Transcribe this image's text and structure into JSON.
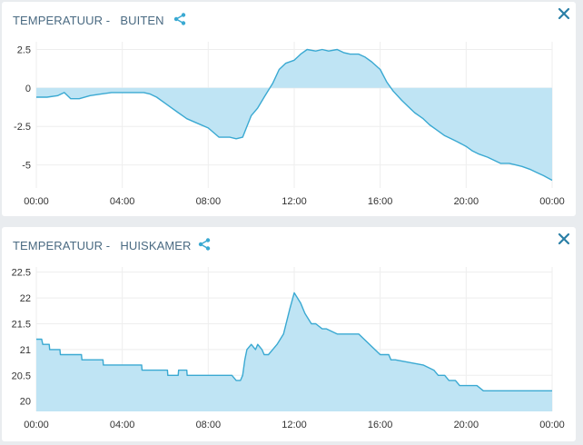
{
  "colors": {
    "accent": "#3aa9d2",
    "fill": "#bfe4f4",
    "title": "#4a6a82",
    "grid": "#eeeeee",
    "close": "#2a7fa6"
  },
  "icons": {
    "share": "share-icon",
    "close": "close-icon"
  },
  "panels": [
    {
      "title": "TEMPERATUUR -   BUITEN"
    },
    {
      "title": "TEMPERATUUR -   HUISKAMER"
    }
  ],
  "chart_data": [
    {
      "type": "area",
      "title": "TEMPERATUUR -   BUITEN",
      "xlabel": "",
      "ylabel": "",
      "ylim": [
        -6.5,
        3.0
      ],
      "baseline": 0,
      "grid": true,
      "xtick_labels": [
        "00:00",
        "04:00",
        "08:00",
        "12:00",
        "16:00",
        "20:00",
        "00:00"
      ],
      "ytick_values": [
        2.5,
        0,
        -2.5,
        -5
      ],
      "ytick_labels": [
        "2.5",
        "0",
        "-2.5",
        "-5"
      ],
      "x_hours": [
        0,
        0.5,
        1,
        1.3,
        1.6,
        2,
        2.5,
        3,
        3.5,
        4,
        4.5,
        5,
        5.3,
        5.6,
        6,
        6.3,
        6.6,
        7,
        7.5,
        8,
        8.5,
        9,
        9.3,
        9.6,
        9.8,
        10,
        10.3,
        10.6,
        11,
        11.3,
        11.6,
        12,
        12.3,
        12.6,
        13,
        13.3,
        13.6,
        14,
        14.3,
        14.6,
        15,
        15.3,
        15.6,
        16,
        16.3,
        16.6,
        17,
        17.3,
        17.6,
        18,
        18.3,
        18.6,
        19,
        19.3,
        19.6,
        20,
        20.3,
        20.6,
        21,
        21.3,
        21.6,
        22,
        22.3,
        22.6,
        23,
        23.3,
        23.6,
        24
      ],
      "values": [
        -0.6,
        -0.6,
        -0.5,
        -0.3,
        -0.7,
        -0.7,
        -0.5,
        -0.4,
        -0.3,
        -0.3,
        -0.3,
        -0.3,
        -0.4,
        -0.6,
        -1.0,
        -1.3,
        -1.6,
        -2.0,
        -2.3,
        -2.6,
        -3.2,
        -3.2,
        -3.3,
        -3.2,
        -2.5,
        -1.8,
        -1.3,
        -0.6,
        0.3,
        1.2,
        1.6,
        1.8,
        2.2,
        2.5,
        2.4,
        2.5,
        2.4,
        2.5,
        2.3,
        2.2,
        2.2,
        2.0,
        1.7,
        1.2,
        0.4,
        -0.2,
        -0.8,
        -1.2,
        -1.6,
        -2.0,
        -2.4,
        -2.7,
        -3.1,
        -3.3,
        -3.5,
        -3.8,
        -4.1,
        -4.3,
        -4.5,
        -4.7,
        -4.9,
        -4.9,
        -5.0,
        -5.1,
        -5.3,
        -5.5,
        -5.7,
        -6.0
      ]
    },
    {
      "type": "area",
      "title": "TEMPERATUUR -   HUISKAMER",
      "xlabel": "",
      "ylabel": "",
      "ylim": [
        19.8,
        22.6
      ],
      "baseline": "bottom",
      "grid": true,
      "xtick_labels": [
        "00:00",
        "04:00",
        "08:00",
        "12:00",
        "16:00",
        "20:00",
        "00:00"
      ],
      "ytick_values": [
        22.5,
        22,
        21.5,
        21,
        20.5,
        20
      ],
      "ytick_labels": [
        "22.5",
        "22",
        "21.5",
        "21",
        "20.5",
        "20"
      ],
      "x_hours": [
        0,
        0.25,
        0.3,
        0.6,
        0.62,
        1.1,
        1.12,
        2.1,
        2.12,
        3.1,
        3.12,
        4.9,
        4.92,
        6.1,
        6.12,
        6.6,
        6.62,
        7.0,
        7.02,
        9.1,
        9.3,
        9.5,
        9.6,
        9.7,
        9.8,
        10.0,
        10.2,
        10.3,
        10.5,
        10.6,
        10.8,
        11.0,
        11.2,
        11.5,
        11.8,
        12.0,
        12.3,
        12.5,
        12.8,
        13.0,
        13.3,
        13.5,
        14.0,
        14.2,
        14.5,
        15.0,
        16.0,
        16.2,
        16.4,
        16.5,
        16.7,
        18.0,
        18.5,
        18.7,
        19.0,
        19.2,
        19.5,
        19.7,
        20.0,
        20.5,
        20.8,
        21.2,
        21.4,
        21.5,
        24.0
      ],
      "values": [
        21.2,
        21.2,
        21.1,
        21.1,
        21.0,
        21.0,
        20.9,
        20.9,
        20.8,
        20.8,
        20.7,
        20.7,
        20.6,
        20.6,
        20.5,
        20.5,
        20.6,
        20.6,
        20.5,
        20.5,
        20.4,
        20.4,
        20.5,
        20.8,
        21.0,
        21.1,
        21.0,
        21.1,
        21.0,
        20.9,
        20.9,
        21.0,
        21.1,
        21.3,
        21.8,
        22.1,
        21.9,
        21.7,
        21.5,
        21.5,
        21.4,
        21.4,
        21.3,
        21.3,
        21.3,
        21.3,
        20.9,
        20.9,
        20.9,
        20.8,
        20.8,
        20.7,
        20.6,
        20.5,
        20.5,
        20.4,
        20.4,
        20.3,
        20.3,
        20.3,
        20.2,
        20.2,
        20.2,
        20.2,
        20.2
      ]
    }
  ]
}
